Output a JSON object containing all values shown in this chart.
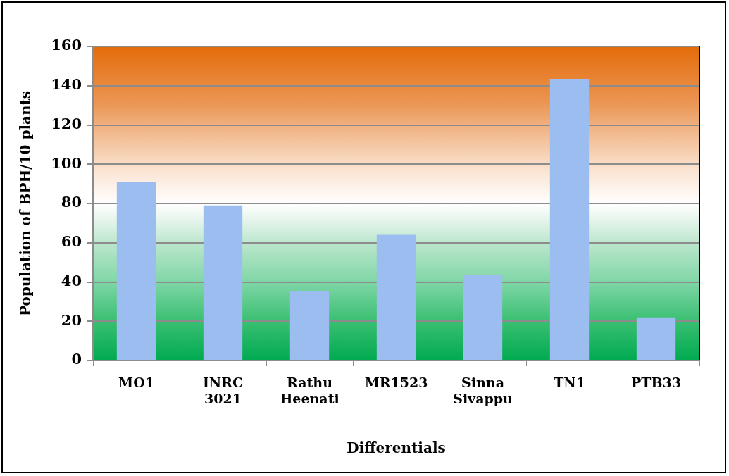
{
  "chart_data": {
    "type": "bar",
    "xlabel": "Differentials",
    "ylabel": "Population of BPH/10 plants",
    "categories": [
      "MO1",
      "INRC 3021",
      "Rathu Heenati",
      "MR1523",
      "Sinna Sivappu",
      "TN1",
      "PTB33"
    ],
    "values": [
      91,
      79,
      35.5,
      64,
      43.5,
      143.5,
      22
    ],
    "color": "#9bbdf0",
    "ylim": [
      0,
      160
    ],
    "yticks": [
      0,
      20,
      40,
      60,
      80,
      100,
      120,
      140,
      160
    ],
    "grid": "y"
  }
}
